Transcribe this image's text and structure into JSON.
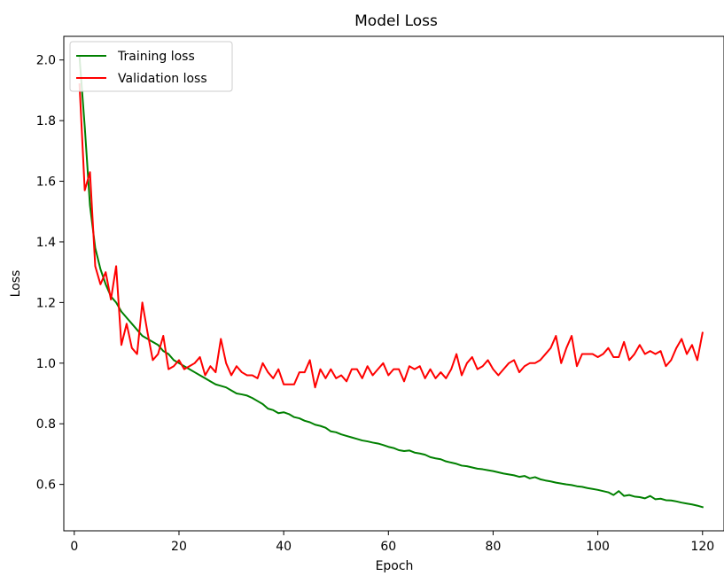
{
  "chart_data": {
    "type": "line",
    "title": "Model Loss",
    "xlabel": "Epoch",
    "ylabel": "Loss",
    "xlim": [
      -2,
      124.1
    ],
    "ylim": [
      0.447,
      2.078
    ],
    "xticks": [
      0,
      20,
      40,
      60,
      80,
      100,
      120
    ],
    "yticks": [
      0.6,
      0.8,
      1.0,
      1.2,
      1.4,
      1.6,
      1.8,
      2.0
    ],
    "xtick_labels": [
      "0",
      "20",
      "40",
      "60",
      "80",
      "100",
      "120"
    ],
    "ytick_labels": [
      "0.6",
      "0.8",
      "1.0",
      "1.2",
      "1.4",
      "1.6",
      "1.8",
      "2.0"
    ],
    "grid": false,
    "legend_position": "top-left",
    "x": [
      1,
      2,
      3,
      4,
      5,
      6,
      7,
      8,
      9,
      10,
      11,
      12,
      13,
      14,
      15,
      16,
      17,
      18,
      19,
      20,
      21,
      22,
      23,
      24,
      25,
      26,
      27,
      28,
      29,
      30,
      31,
      32,
      33,
      34,
      35,
      36,
      37,
      38,
      39,
      40,
      41,
      42,
      43,
      44,
      45,
      46,
      47,
      48,
      49,
      50,
      51,
      52,
      53,
      54,
      55,
      56,
      57,
      58,
      59,
      60,
      61,
      62,
      63,
      64,
      65,
      66,
      67,
      68,
      69,
      70,
      71,
      72,
      73,
      74,
      75,
      76,
      77,
      78,
      79,
      80,
      81,
      82,
      83,
      84,
      85,
      86,
      87,
      88,
      89,
      90,
      91,
      92,
      93,
      94,
      95,
      96,
      97,
      98,
      99,
      100,
      101,
      102,
      103,
      104,
      105,
      106,
      107,
      108,
      109,
      110,
      111,
      112,
      113,
      114,
      115,
      116,
      117,
      118,
      119,
      120
    ],
    "series": [
      {
        "name": "Training loss",
        "color": "#008000",
        "values": [
          2.01,
          1.78,
          1.52,
          1.38,
          1.31,
          1.26,
          1.22,
          1.2,
          1.17,
          1.15,
          1.13,
          1.11,
          1.09,
          1.08,
          1.07,
          1.06,
          1.04,
          1.03,
          1.01,
          1.0,
          0.99,
          0.98,
          0.97,
          0.96,
          0.95,
          0.94,
          0.93,
          0.925,
          0.92,
          0.91,
          0.9,
          0.897,
          0.893,
          0.885,
          0.875,
          0.865,
          0.85,
          0.845,
          0.835,
          0.838,
          0.832,
          0.822,
          0.818,
          0.81,
          0.805,
          0.797,
          0.793,
          0.787,
          0.775,
          0.772,
          0.765,
          0.76,
          0.755,
          0.75,
          0.745,
          0.742,
          0.738,
          0.735,
          0.73,
          0.724,
          0.72,
          0.713,
          0.71,
          0.712,
          0.705,
          0.702,
          0.698,
          0.69,
          0.686,
          0.683,
          0.676,
          0.672,
          0.668,
          0.662,
          0.66,
          0.656,
          0.652,
          0.65,
          0.647,
          0.644,
          0.64,
          0.636,
          0.633,
          0.63,
          0.625,
          0.628,
          0.62,
          0.624,
          0.617,
          0.613,
          0.61,
          0.606,
          0.603,
          0.6,
          0.598,
          0.594,
          0.592,
          0.588,
          0.585,
          0.582,
          0.578,
          0.574,
          0.565,
          0.578,
          0.562,
          0.565,
          0.56,
          0.558,
          0.554,
          0.562,
          0.551,
          0.553,
          0.548,
          0.547,
          0.544,
          0.54,
          0.537,
          0.534,
          0.53,
          0.525
        ]
      },
      {
        "name": "Validation loss",
        "color": "#ff0000",
        "values": [
          1.92,
          1.57,
          1.63,
          1.32,
          1.26,
          1.3,
          1.21,
          1.32,
          1.06,
          1.13,
          1.05,
          1.03,
          1.2,
          1.1,
          1.01,
          1.03,
          1.09,
          0.98,
          0.99,
          1.01,
          0.98,
          0.99,
          1.0,
          1.02,
          0.96,
          0.99,
          0.97,
          1.08,
          1.0,
          0.96,
          0.99,
          0.97,
          0.96,
          0.96,
          0.95,
          1.0,
          0.97,
          0.95,
          0.98,
          0.93,
          0.93,
          0.93,
          0.97,
          0.97,
          1.01,
          0.92,
          0.98,
          0.95,
          0.98,
          0.95,
          0.96,
          0.94,
          0.98,
          0.98,
          0.95,
          0.99,
          0.96,
          0.98,
          1.0,
          0.96,
          0.98,
          0.98,
          0.94,
          0.99,
          0.98,
          0.99,
          0.95,
          0.98,
          0.95,
          0.97,
          0.95,
          0.98,
          1.03,
          0.96,
          1.0,
          1.02,
          0.98,
          0.99,
          1.01,
          0.98,
          0.96,
          0.98,
          1.0,
          1.01,
          0.97,
          0.99,
          1.0,
          1.0,
          1.01,
          1.03,
          1.05,
          1.09,
          1.0,
          1.05,
          1.09,
          0.99,
          1.03,
          1.03,
          1.03,
          1.02,
          1.03,
          1.05,
          1.02,
          1.02,
          1.07,
          1.01,
          1.03,
          1.06,
          1.03,
          1.04,
          1.03,
          1.04,
          0.99,
          1.01,
          1.05,
          1.08,
          1.03,
          1.06,
          1.01,
          1.1
        ]
      }
    ]
  }
}
